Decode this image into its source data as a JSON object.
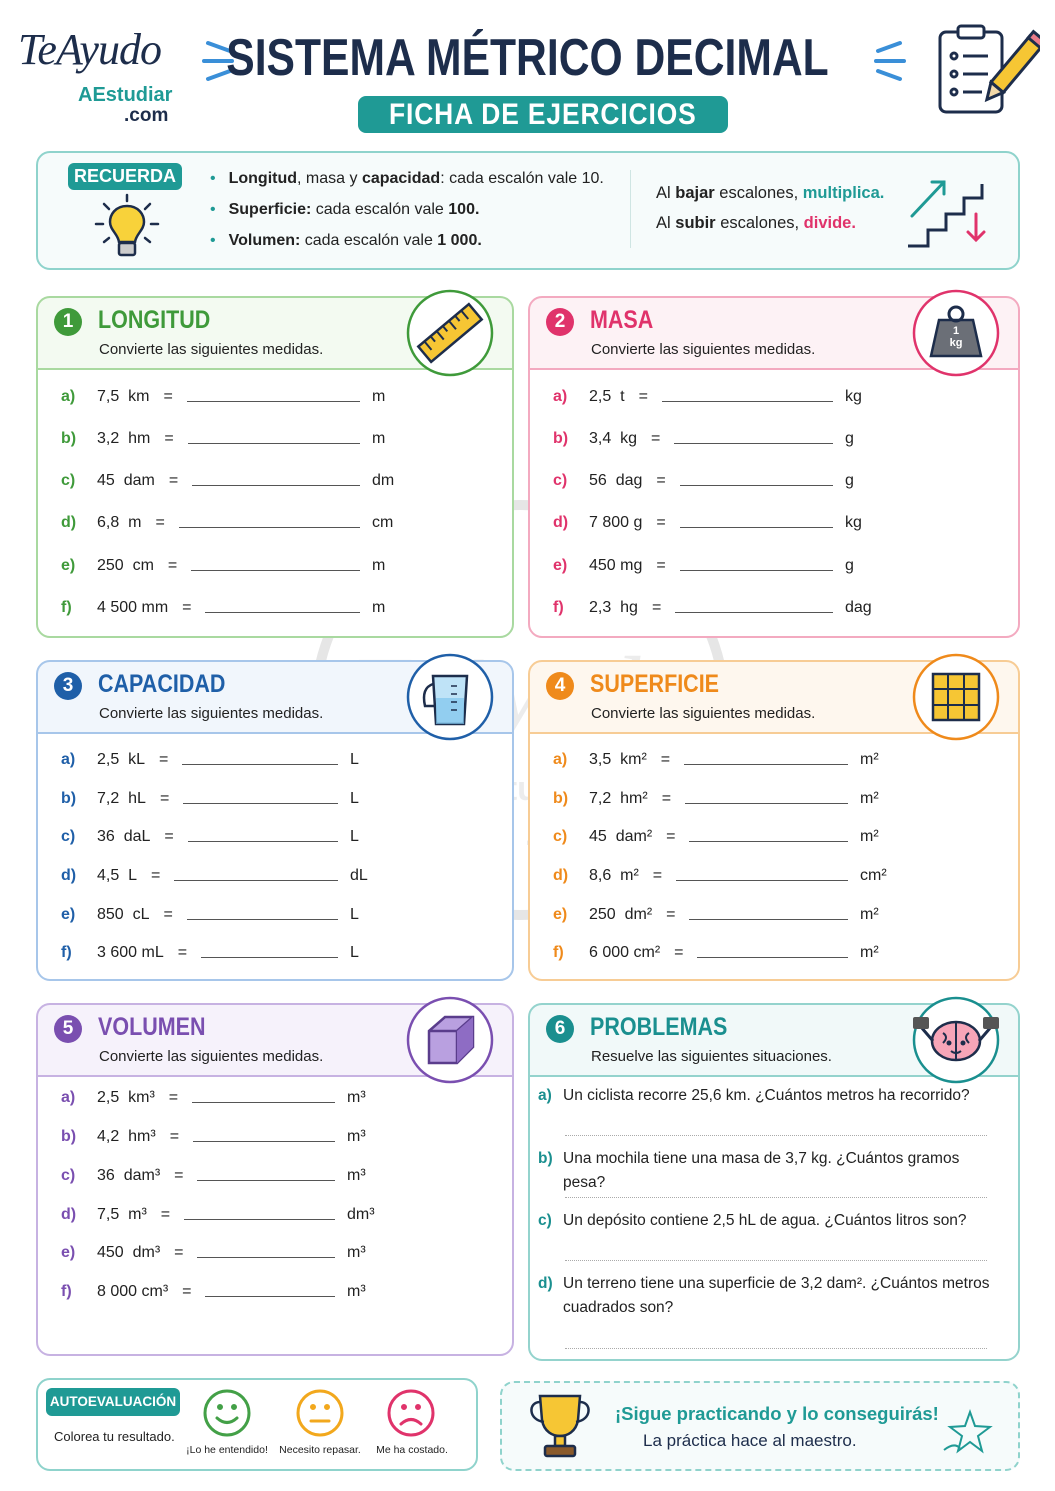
{
  "header": {
    "logo": [
      "TeAyudo",
      "AEstudiar",
      ".com"
    ],
    "title": "SISTEMA MÉTRICO DECIMAL",
    "subtitle": "FICHA DE EJERCICIOS"
  },
  "reminder": {
    "badge": "RECUERDA",
    "rules": [
      [
        "Longitud",
        ", masa y ",
        "capacidad",
        ": cada escalón vale 10."
      ],
      [
        "Superficie:",
        " cada escalón vale ",
        "100."
      ],
      [
        "Volumen:",
        " cada escalón vale ",
        "1 000."
      ]
    ],
    "tips": [
      [
        "Al ",
        "bajar",
        " escalones, ",
        "multiplica."
      ],
      [
        "Al ",
        "subir",
        " escalones, ",
        "divide."
      ]
    ]
  },
  "equals": "=",
  "sections": [
    {
      "number": "1",
      "title": "LONGITUD",
      "instruction": "Convierte las siguientes medidas.",
      "exercises": [
        {
          "label": "a)",
          "from": "7,5  km",
          "to": "m"
        },
        {
          "label": "b)",
          "from": "3,2  hm",
          "to": "m"
        },
        {
          "label": "c)",
          "from": "45  dam",
          "to": "dm"
        },
        {
          "label": "d)",
          "from": "6,8  m",
          "to": "cm"
        },
        {
          "label": "e)",
          "from": "250  cm",
          "to": "m"
        },
        {
          "label": "f)",
          "from": "4 500 mm",
          "to": "m"
        }
      ]
    },
    {
      "number": "2",
      "title": "MASA",
      "instruction": "Convierte las siguientes medidas.",
      "icon_text": [
        "1",
        "kg"
      ],
      "exercises": [
        {
          "label": "a)",
          "from": "2,5  t",
          "to": "kg"
        },
        {
          "label": "b)",
          "from": "3,4  kg",
          "to": "g"
        },
        {
          "label": "c)",
          "from": "56  dag",
          "to": "g"
        },
        {
          "label": "d)",
          "from": "7 800 g",
          "to": "kg"
        },
        {
          "label": "e)",
          "from": "450 mg",
          "to": "g"
        },
        {
          "label": "f)",
          "from": "2,3  hg",
          "to": "dag"
        }
      ]
    },
    {
      "number": "3",
      "title": "CAPACIDAD",
      "instruction": "Convierte las siguientes medidas.",
      "exercises": [
        {
          "label": "a)",
          "from": "2,5  kL",
          "to": "L"
        },
        {
          "label": "b)",
          "from": "7,2  hL",
          "to": "L"
        },
        {
          "label": "c)",
          "from": "36  daL",
          "to": "L"
        },
        {
          "label": "d)",
          "from": "4,5  L",
          "to": "dL"
        },
        {
          "label": "e)",
          "from": "850  cL",
          "to": "L"
        },
        {
          "label": "f)",
          "from": "3 600 mL",
          "to": "L"
        }
      ]
    },
    {
      "number": "4",
      "title": "SUPERFICIE",
      "instruction": "Convierte las siguientes medidas.",
      "exercises": [
        {
          "label": "a)",
          "from": "3,5  km²",
          "to": "m²"
        },
        {
          "label": "b)",
          "from": "7,2  hm²",
          "to": "m²"
        },
        {
          "label": "c)",
          "from": "45  dam²",
          "to": "m²"
        },
        {
          "label": "d)",
          "from": "8,6  m²",
          "to": "cm²"
        },
        {
          "label": "e)",
          "from": "250  dm²",
          "to": "m²"
        },
        {
          "label": "f)",
          "from": "6 000 cm²",
          "to": "m²"
        }
      ]
    },
    {
      "number": "5",
      "title": "VOLUMEN",
      "instruction": "Convierte las siguientes medidas.",
      "exercises": [
        {
          "label": "a)",
          "from": "2,5  km³",
          "to": "m³"
        },
        {
          "label": "b)",
          "from": "4,2  hm³",
          "to": "m³"
        },
        {
          "label": "c)",
          "from": "36  dam³",
          "to": "m³"
        },
        {
          "label": "d)",
          "from": "7,5  m³",
          "to": "dm³"
        },
        {
          "label": "e)",
          "from": "450  dm³",
          "to": "m³"
        },
        {
          "label": "f)",
          "from": "8 000 cm³",
          "to": "m³"
        }
      ]
    },
    {
      "number": "6",
      "title": "PROBLEMAS",
      "instruction": "Resuelve las siguientes situaciones.",
      "problems": [
        {
          "label": "a)",
          "text": "Un ciclista recorre 25,6 km. ¿Cuántos metros ha recorrido?"
        },
        {
          "label": "b)",
          "text": "Una mochila tiene una masa de 3,7 kg. ¿Cuántos gramos pesa?"
        },
        {
          "label": "c)",
          "text": "Un depósito contiene 2,5 hL de agua. ¿Cuántos litros son?"
        },
        {
          "label": "d)",
          "text": "Un terreno tiene una superficie de 3,2 dam². ¿Cuántos metros cuadrados son?"
        }
      ]
    }
  ],
  "self_assessment": {
    "badge": "AUTOEVALUACIÓN",
    "instruction": "Colorea tu resultado.",
    "options": [
      "¡Lo he entendido!",
      "Necesito repasar.",
      "Me ha costado."
    ]
  },
  "footer": {
    "headline": "¡Sigue practicando y lo conseguirás!",
    "motto": "La práctica hace al maestro."
  }
}
